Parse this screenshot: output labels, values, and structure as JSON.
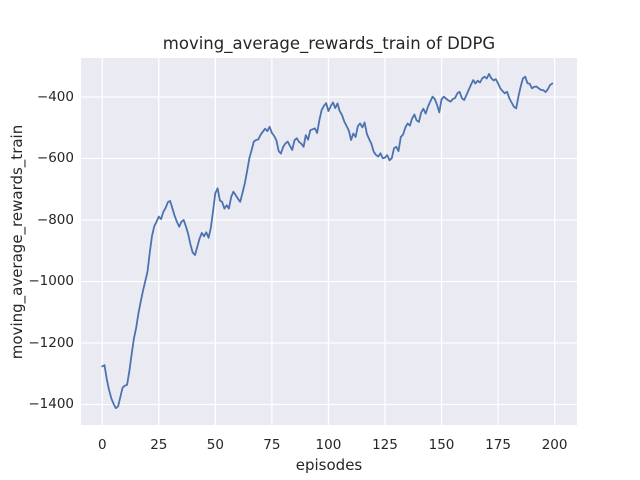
{
  "chart_data": {
    "type": "line",
    "title": "moving_average_rewards_train of DDPG",
    "xlabel": "episodes",
    "ylabel": "moving_average_rewards_train",
    "grid": true,
    "legend": "none",
    "xticks": [
      0,
      25,
      50,
      75,
      100,
      125,
      150,
      175,
      200
    ],
    "yticks": [
      -400,
      -600,
      -800,
      -1000,
      -1200,
      -1400
    ],
    "xlim": [
      -9.4,
      209.9
    ],
    "ylim": [
      -1466.7,
      -273.2
    ],
    "colors": {
      "line": "#4C72B0",
      "axes_background": "#EAEAF2",
      "grid": "#FFFFFF",
      "text": "#262626"
    },
    "x": {
      "start": 0,
      "step": 1
    },
    "series_name": "moving_average_rewards_train",
    "values": [
      -1276,
      -1272,
      -1318,
      -1352,
      -1380,
      -1398,
      -1412,
      -1406,
      -1375,
      -1345,
      -1339,
      -1336,
      -1290,
      -1235,
      -1186,
      -1150,
      -1104,
      -1066,
      -1030,
      -1000,
      -968,
      -905,
      -852,
      -820,
      -806,
      -789,
      -797,
      -774,
      -761,
      -742,
      -738,
      -762,
      -786,
      -806,
      -822,
      -806,
      -800,
      -821,
      -846,
      -880,
      -906,
      -914,
      -887,
      -861,
      -842,
      -853,
      -840,
      -858,
      -826,
      -770,
      -713,
      -697,
      -737,
      -741,
      -763,
      -752,
      -763,
      -725,
      -708,
      -719,
      -731,
      -741,
      -712,
      -681,
      -643,
      -600,
      -574,
      -545,
      -540,
      -538,
      -523,
      -513,
      -503,
      -511,
      -497,
      -517,
      -527,
      -541,
      -576,
      -584,
      -562,
      -551,
      -545,
      -559,
      -572,
      -541,
      -534,
      -546,
      -552,
      -562,
      -524,
      -539,
      -508,
      -505,
      -502,
      -517,
      -475,
      -443,
      -429,
      -420,
      -446,
      -430,
      -418,
      -436,
      -421,
      -446,
      -459,
      -480,
      -494,
      -509,
      -540,
      -519,
      -530,
      -495,
      -486,
      -499,
      -483,
      -520,
      -537,
      -552,
      -578,
      -588,
      -594,
      -583,
      -599,
      -597,
      -589,
      -606,
      -599,
      -567,
      -562,
      -576,
      -530,
      -522,
      -500,
      -486,
      -493,
      -470,
      -457,
      -476,
      -481,
      -450,
      -438,
      -454,
      -431,
      -415,
      -399,
      -406,
      -425,
      -450,
      -408,
      -399,
      -405,
      -411,
      -415,
      -407,
      -403,
      -388,
      -383,
      -404,
      -410,
      -394,
      -377,
      -361,
      -345,
      -356,
      -347,
      -353,
      -340,
      -334,
      -340,
      -325,
      -339,
      -346,
      -342,
      -356,
      -372,
      -381,
      -388,
      -383,
      -405,
      -418,
      -432,
      -437,
      -399,
      -366,
      -340,
      -334,
      -355,
      -357,
      -372,
      -367,
      -366,
      -372,
      -377,
      -378,
      -384,
      -375,
      -361,
      -356
    ]
  }
}
